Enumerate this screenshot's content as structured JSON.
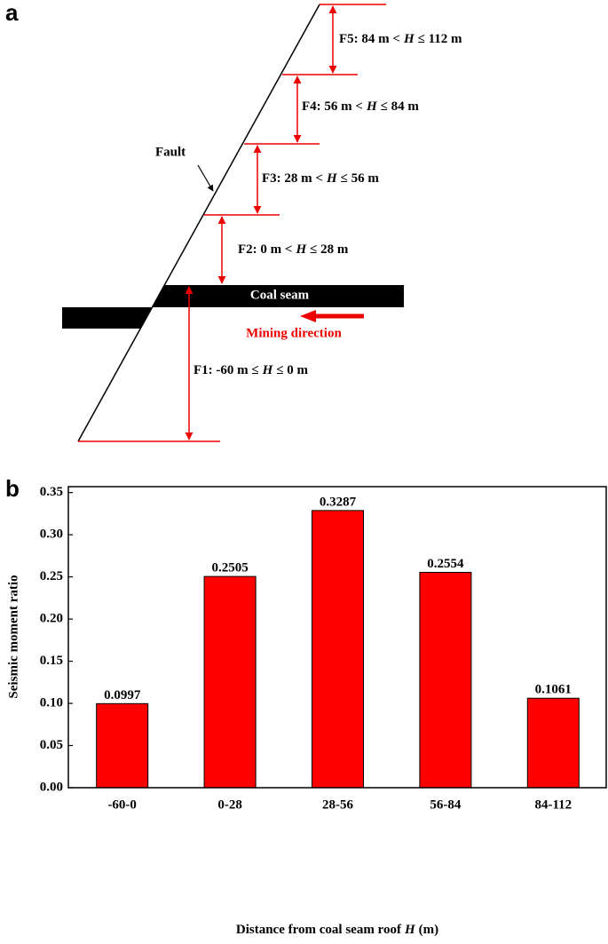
{
  "diagram": {
    "panel_label": "a",
    "fault_label": "Fault",
    "coal_seam_label": "Coal seam",
    "mining_direction_label": "Mining direction",
    "zones": [
      {
        "parts": [
          "F5: 84 m <",
          "H",
          "≤ 112 m"
        ]
      },
      {
        "parts": [
          "F4: 56 m <",
          "H",
          "≤ 84 m"
        ]
      },
      {
        "parts": [
          "F3: 28 m <",
          "H",
          "≤ 56 m"
        ]
      },
      {
        "parts": [
          "F2: 0 m <",
          "H",
          "≤ 28 m"
        ]
      },
      {
        "parts": [
          "F1: -60 m ≤",
          "H",
          "≤ 0 m"
        ]
      }
    ]
  },
  "chart_data": {
    "type": "bar",
    "panel_label": "b",
    "xlabel_parts": [
      "Distance from coal seam roof",
      "H",
      "(m)"
    ],
    "ylabel": "Seismic moment ratio",
    "categories": [
      "-60-0",
      "0-28",
      "28-56",
      "56-84",
      "84-112"
    ],
    "values": [
      0.0997,
      0.2505,
      0.3287,
      0.2554,
      0.1061
    ],
    "color": "#ff0000",
    "ylim": [
      0,
      0.357
    ],
    "yticks": [
      {
        "value": 0,
        "label": "0.00"
      },
      0.05,
      {
        "value": 0.1,
        "label": "0.10"
      },
      0.15,
      {
        "value": 0.2,
        "label": "0.20"
      },
      0.25,
      {
        "value": 0.3,
        "label": "0.30"
      },
      0.35
    ]
  }
}
